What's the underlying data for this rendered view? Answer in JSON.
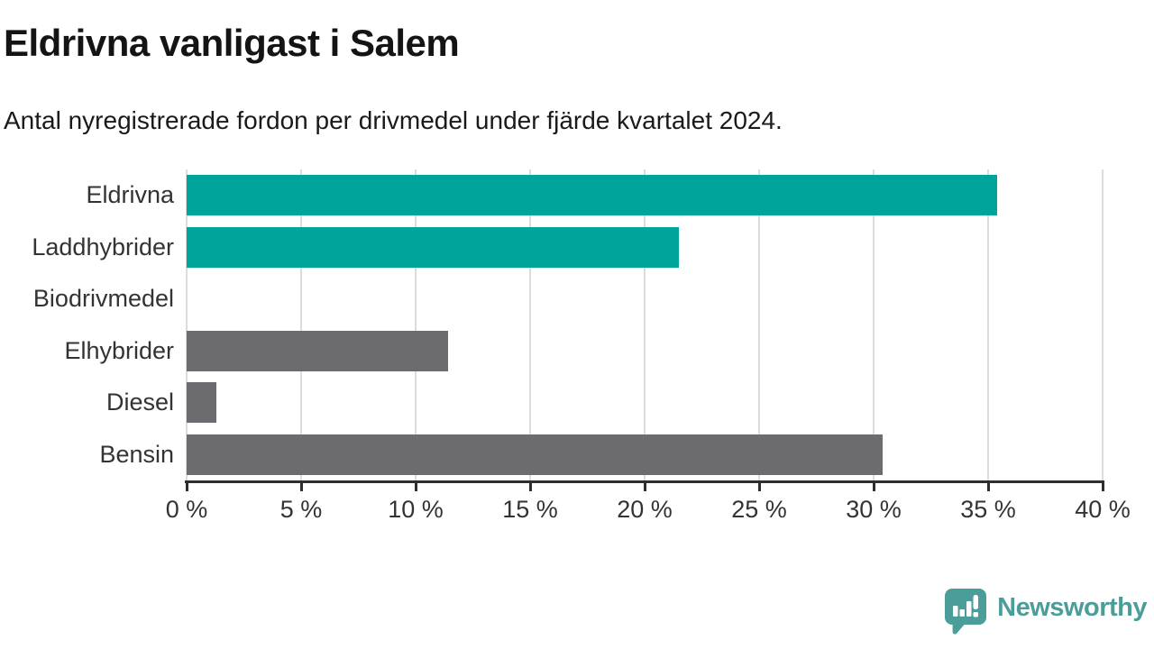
{
  "header": {
    "title": "Eldrivna vanligast i Salem",
    "subtitle": "Antal nyregistrerade fordon per drivmedel under fjärde kvartalet 2024."
  },
  "chart_data": {
    "type": "bar",
    "orientation": "horizontal",
    "title": "Eldrivna vanligast i Salem",
    "subtitle": "Antal nyregistrerade fordon per drivmedel under fjärde kvartalet 2024.",
    "categories": [
      "Eldrivna",
      "Laddhybrider",
      "Biodrivmedel",
      "Elhybrider",
      "Diesel",
      "Bensin"
    ],
    "values": [
      35.4,
      21.5,
      0,
      11.4,
      1.3,
      30.4
    ],
    "value_unit": "%",
    "bar_colors": [
      "#00a49b",
      "#00a49b",
      "#6b6b70",
      "#6b6b70",
      "#6b6b70",
      "#6b6b70"
    ],
    "xlim": [
      0,
      40
    ],
    "x_ticks": [
      0,
      5,
      10,
      15,
      20,
      25,
      30,
      35,
      40
    ],
    "x_tick_labels": [
      "0 %",
      "5 %",
      "10 %",
      "15 %",
      "20 %",
      "25 %",
      "30 %",
      "35 %",
      "40 %"
    ],
    "ylabel": "",
    "xlabel": "",
    "grid": true,
    "legend": null
  },
  "colors": {
    "accent_teal": "#00a49b",
    "bar_gray": "#6b6b70",
    "gridline": "#dcdcdc",
    "axis": "#2e2e2e",
    "label_text": "#333333",
    "title_text": "#141414",
    "brand_teal": "#4a9d98"
  },
  "footer": {
    "brand_name": "Newsworthy"
  }
}
